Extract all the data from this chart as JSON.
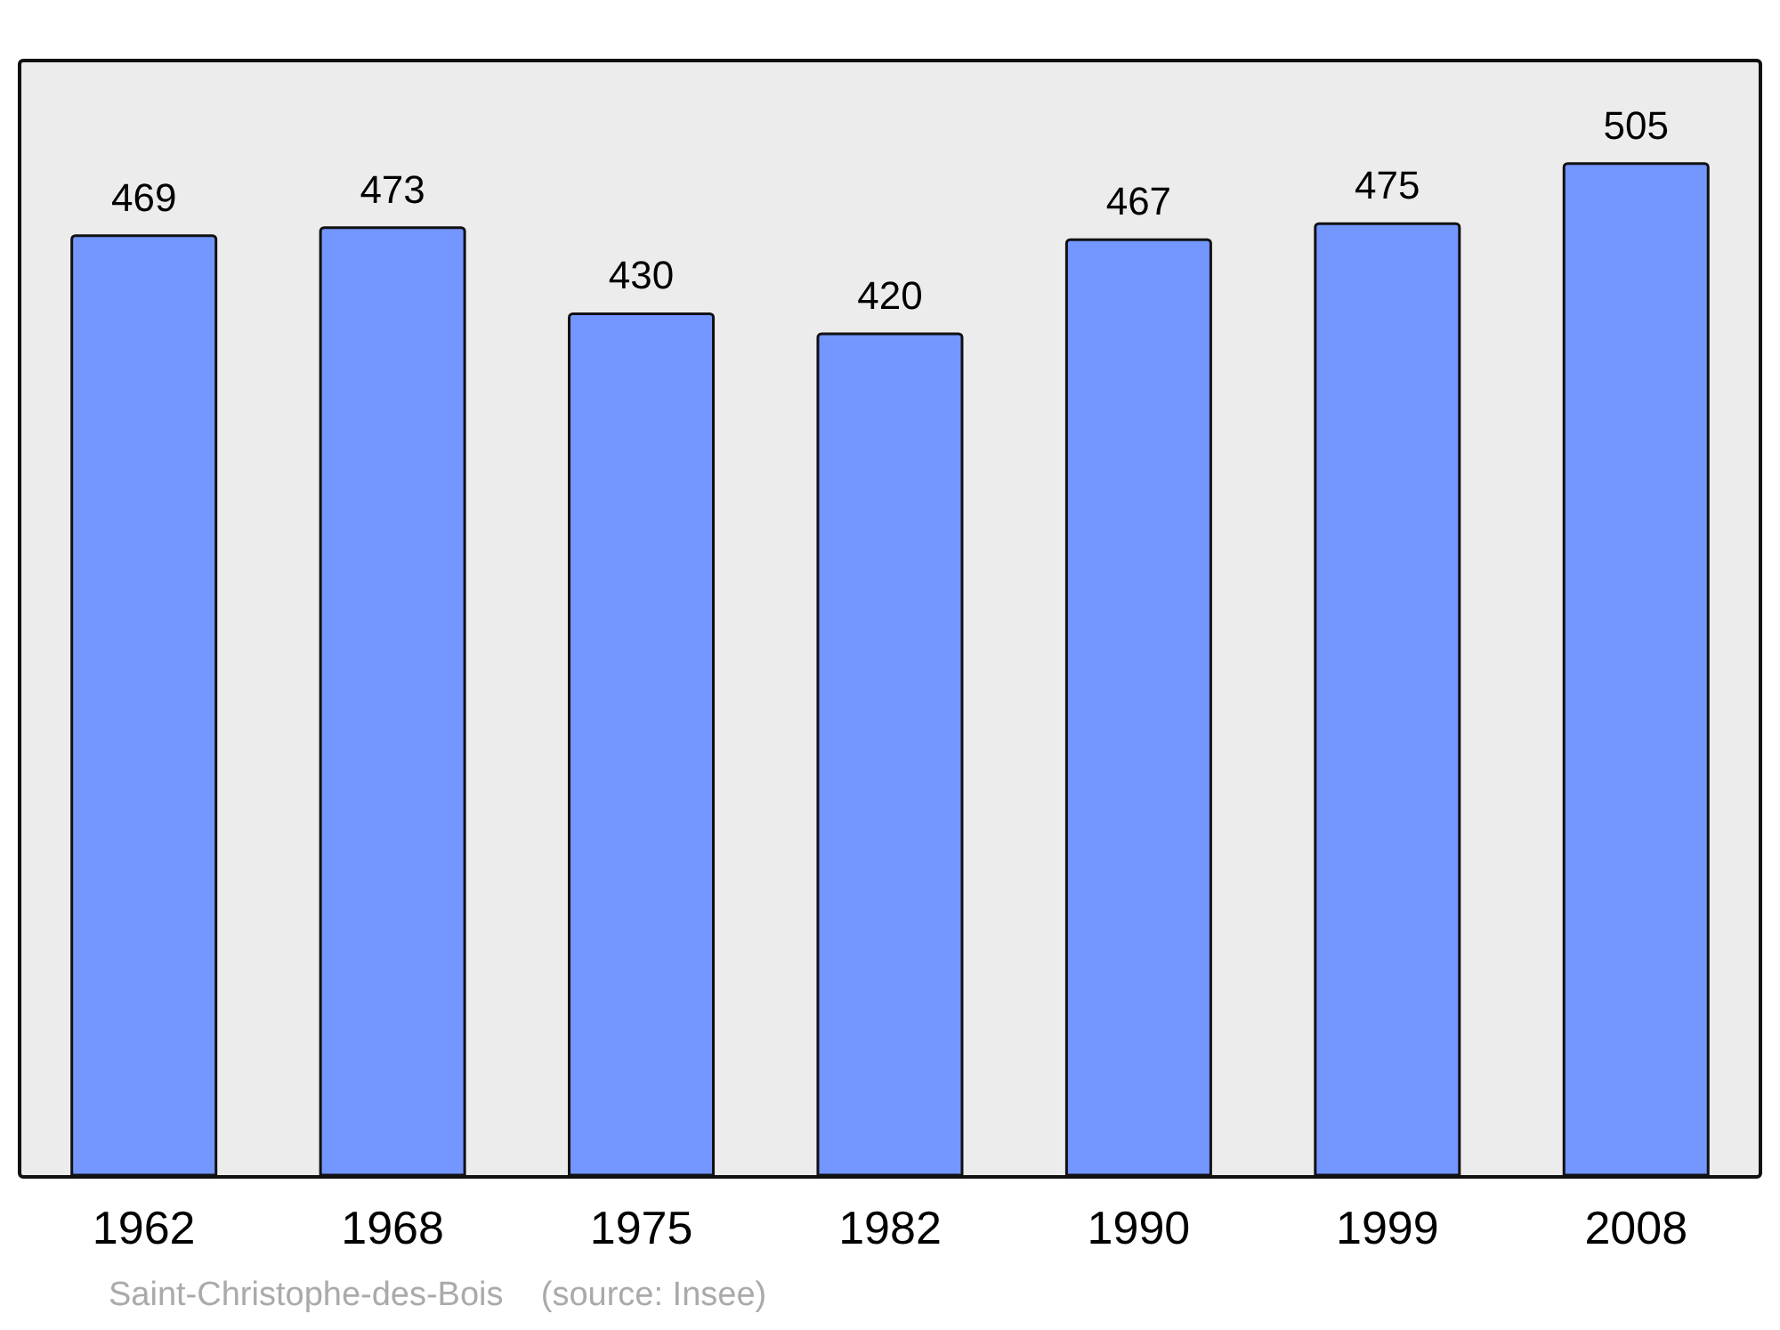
{
  "chart_data": {
    "type": "bar",
    "categories": [
      "1962",
      "1968",
      "1975",
      "1982",
      "1990",
      "1999",
      "2008"
    ],
    "values": [
      469,
      473,
      430,
      420,
      467,
      475,
      505
    ],
    "color": "#7396ff",
    "data_labels": true,
    "grid": false,
    "legend": false,
    "annotations": [
      "Saint-Christophe-des-Bois    (source: Insee)"
    ]
  }
}
